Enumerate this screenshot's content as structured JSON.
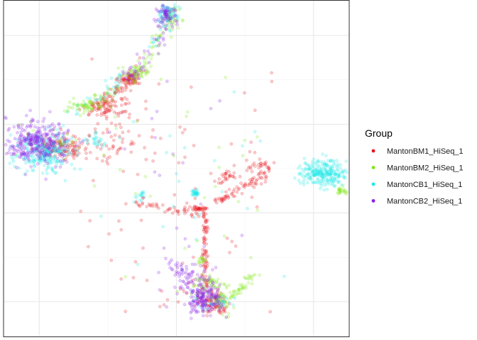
{
  "chart_data": {
    "type": "scatter",
    "title": "",
    "xlabel": "",
    "ylabel": "",
    "xlim": [
      -6.3,
      6.3
    ],
    "ylim": [
      -7.6,
      7.6
    ],
    "x_major_ticks": [
      -5,
      0,
      5
    ],
    "x_minor_ticks": [
      -2.5,
      2.5
    ],
    "y_major_ticks": [
      -6,
      -2,
      2,
      6
    ],
    "y_minor_ticks": [
      -4,
      0,
      4
    ],
    "grid": true,
    "axis_tick_labels_shown": false,
    "legend": {
      "title": "Group",
      "position": "right",
      "entries": [
        {
          "name": "MantonBM1_HiSeq_1",
          "color": "#e8141b"
        },
        {
          "name": "MantonBM2_HiSeq_1",
          "color": "#7fe817"
        },
        {
          "name": "MantonCB1_HiSeq_1",
          "color": "#1ee8e8"
        },
        {
          "name": "MantonCB2_HiSeq_1",
          "color": "#8a1ee8"
        }
      ]
    },
    "point_alpha": 0.22,
    "series": [
      {
        "name": "MantonBM1_HiSeq_1",
        "color": "#e8141b",
        "clusters": [
          {
            "x": -4.2,
            "y": 1.0,
            "sx": 0.5,
            "sy": 0.3,
            "n": 120
          },
          {
            "x": -2.4,
            "y": 2.8,
            "sx": 0.4,
            "sy": 0.3,
            "n": 70
          },
          {
            "x": -1.7,
            "y": 4.0,
            "sx": 0.2,
            "sy": 0.15,
            "n": 60
          },
          {
            "x": -2.1,
            "y": 1.2,
            "sx": 0.6,
            "sy": 0.5,
            "n": 50
          },
          {
            "x": 0.8,
            "y": -1.8,
            "sx": 0.2,
            "sy": 0.08,
            "n": 35
          },
          {
            "x": 1.8,
            "y": -0.4,
            "sx": 0.25,
            "sy": 0.15,
            "n": 25
          },
          {
            "x": 3.0,
            "y": 0.2,
            "sx": 0.3,
            "sy": 0.2,
            "n": 30
          },
          {
            "x": 1.5,
            "y": -6.1,
            "sx": 0.25,
            "sy": 0.3,
            "n": 60
          },
          {
            "x": 1.1,
            "y": -5.8,
            "sx": 0.35,
            "sy": 0.35,
            "n": 40
          }
        ],
        "lines": [
          {
            "x0": -3.2,
            "y0": 2.5,
            "x1": -1.3,
            "y1": 4.3,
            "n": 70,
            "jitter": 0.12
          },
          {
            "x0": 1.5,
            "y0": -1.5,
            "x1": 3.3,
            "y1": -0.2,
            "n": 70,
            "jitter": 0.1
          },
          {
            "x0": 1.05,
            "y0": -1.8,
            "x1": 1.05,
            "y1": -5.4,
            "n": 80,
            "jitter": 0.05
          },
          {
            "x0": -1.4,
            "y0": -1.6,
            "x1": 1.05,
            "y1": -2.1,
            "n": 40,
            "jitter": 0.08
          }
        ],
        "scatter": {
          "x0": -3.5,
          "x1": 3.5,
          "y0": -6.5,
          "y1": 5.0,
          "n": 70
        }
      },
      {
        "name": "MantonBM2_HiSeq_1",
        "color": "#7fe817",
        "clusters": [
          {
            "x": -1.5,
            "y": 4.3,
            "sx": 0.3,
            "sy": 0.2,
            "n": 60
          },
          {
            "x": -3.3,
            "y": 2.8,
            "sx": 0.35,
            "sy": 0.15,
            "n": 50
          },
          {
            "x": -0.2,
            "y": 6.8,
            "sx": 0.15,
            "sy": 0.2,
            "n": 40
          },
          {
            "x": 6.0,
            "y": -1.0,
            "sx": 0.1,
            "sy": 0.1,
            "n": 25
          },
          {
            "x": 1.2,
            "y": -5.2,
            "sx": 0.3,
            "sy": 0.2,
            "n": 50
          },
          {
            "x": 1.7,
            "y": -5.9,
            "sx": 0.2,
            "sy": 0.3,
            "n": 45
          },
          {
            "x": 0.9,
            "y": -4.2,
            "sx": 0.1,
            "sy": 0.15,
            "n": 15
          },
          {
            "x": -4.6,
            "y": 1.3,
            "sx": 0.5,
            "sy": 0.4,
            "n": 30
          }
        ],
        "lines": [
          {
            "x0": 1.9,
            "y0": -5.9,
            "x1": 2.8,
            "y1": -4.8,
            "n": 40,
            "jitter": 0.1
          },
          {
            "x0": -1.2,
            "y0": 4.4,
            "x1": -0.4,
            "y1": 6.4,
            "n": 35,
            "jitter": 0.15
          },
          {
            "x0": -3.6,
            "y0": 2.5,
            "x1": -2.2,
            "y1": 3.6,
            "n": 30,
            "jitter": 0.15
          }
        ],
        "scatter": {
          "x0": -3.0,
          "x1": 3.5,
          "y0": -6.0,
          "y1": 4.5,
          "n": 30
        }
      },
      {
        "name": "MantonCB1_HiSeq_1",
        "color": "#1ee8e8",
        "clusters": [
          {
            "x": -4.8,
            "y": 0.7,
            "sx": 0.55,
            "sy": 0.45,
            "n": 260
          },
          {
            "x": -0.3,
            "y": 7.0,
            "sx": 0.2,
            "sy": 0.2,
            "n": 60
          },
          {
            "x": 5.4,
            "y": -0.2,
            "sx": 0.4,
            "sy": 0.3,
            "n": 260
          },
          {
            "x": 0.7,
            "y": -1.1,
            "sx": 0.06,
            "sy": 0.08,
            "n": 30
          },
          {
            "x": 1.3,
            "y": -6.0,
            "sx": 0.3,
            "sy": 0.25,
            "n": 40
          },
          {
            "x": -2.9,
            "y": 1.3,
            "sx": 0.15,
            "sy": 0.15,
            "n": 25
          },
          {
            "x": -1.3,
            "y": -1.2,
            "sx": 0.12,
            "sy": 0.1,
            "n": 15
          }
        ],
        "lines": [
          {
            "x0": -3.6,
            "y0": 2.5,
            "x1": -1.8,
            "y1": 4.2,
            "n": 30,
            "jitter": 0.15
          },
          {
            "x0": -0.9,
            "y0": 5.3,
            "x1": -0.3,
            "y1": 6.9,
            "n": 20,
            "jitter": 0.15
          }
        ],
        "scatter": {
          "x0": -3.0,
          "x1": 4.0,
          "y0": -5.5,
          "y1": 4.0,
          "n": 25
        }
      },
      {
        "name": "MantonCB2_HiSeq_1",
        "color": "#8a1ee8",
        "clusters": [
          {
            "x": -5.1,
            "y": 1.2,
            "sx": 0.55,
            "sy": 0.5,
            "n": 320
          },
          {
            "x": -0.4,
            "y": 6.9,
            "sx": 0.2,
            "sy": 0.25,
            "n": 70
          },
          {
            "x": 1.0,
            "y": -5.9,
            "sx": 0.35,
            "sy": 0.35,
            "n": 160
          },
          {
            "x": 0.6,
            "y": -4.9,
            "sx": 0.4,
            "sy": 0.4,
            "n": 50
          },
          {
            "x": -1.7,
            "y": 4.2,
            "sx": 0.2,
            "sy": 0.15,
            "n": 20
          }
        ],
        "lines": [
          {
            "x0": -1.4,
            "y0": 4.3,
            "x1": -0.3,
            "y1": 6.7,
            "n": 25,
            "jitter": 0.15
          },
          {
            "x0": -0.3,
            "y0": -4.2,
            "x1": 0.8,
            "y1": -5.6,
            "n": 30,
            "jitter": 0.2
          }
        ],
        "scatter": {
          "x0": -3.0,
          "x1": 2.5,
          "y0": -5.5,
          "y1": 4.0,
          "n": 20
        }
      }
    ]
  }
}
